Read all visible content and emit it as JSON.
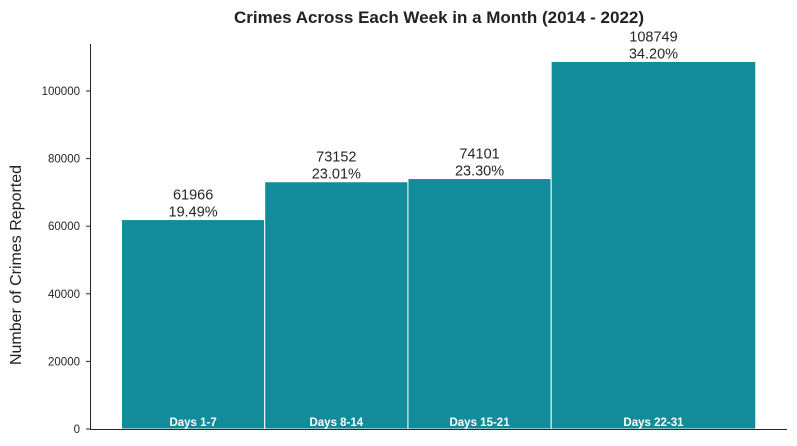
{
  "chart_data": {
    "type": "bar",
    "title": "Crimes Across Each Week in a Month (2014 - 2022)",
    "xlabel": "",
    "ylabel": "Number of Crimes Reported",
    "categories": [
      "Days 1-7",
      "Days 8-14",
      "Days 15-21",
      "Days 22-31"
    ],
    "bin_edges": [
      1,
      8,
      15,
      22,
      32
    ],
    "values": [
      61966,
      73152,
      74101,
      108749
    ],
    "percentages": [
      "19.49%",
      "23.01%",
      "23.30%",
      "34.20%"
    ],
    "ylim": [
      0,
      114000
    ],
    "yticks": [
      0,
      20000,
      40000,
      60000,
      80000,
      100000
    ],
    "ytick_labels": [
      "0",
      "20000",
      "40000",
      "60000",
      "80000",
      "100000"
    ],
    "grid": false,
    "bar_color": "#128c9a"
  }
}
